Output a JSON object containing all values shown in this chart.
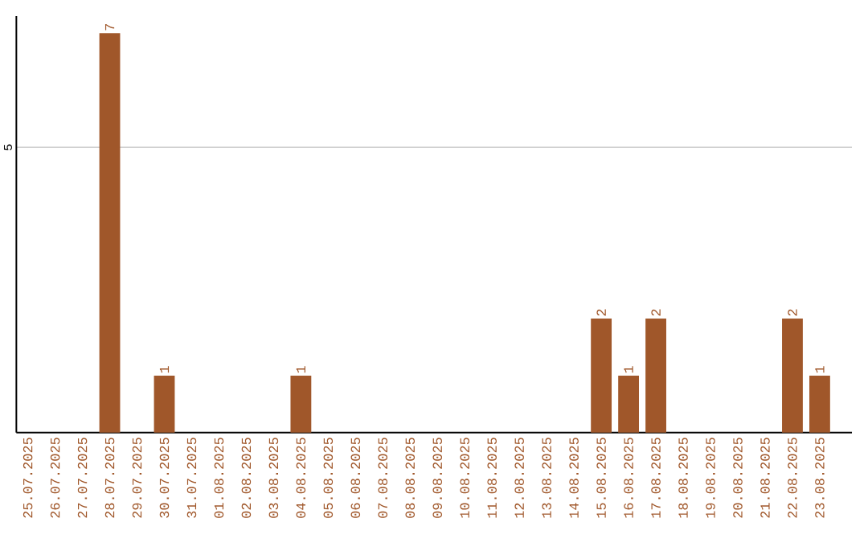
{
  "chart_data": {
    "type": "bar",
    "categories": [
      "25.07.2025",
      "26.07.2025",
      "27.07.2025",
      "28.07.2025",
      "29.07.2025",
      "30.07.2025",
      "31.07.2025",
      "01.08.2025",
      "02.08.2025",
      "03.08.2025",
      "04.08.2025",
      "05.08.2025",
      "06.08.2025",
      "07.08.2025",
      "08.08.2025",
      "09.08.2025",
      "10.08.2025",
      "11.08.2025",
      "12.08.2025",
      "13.08.2025",
      "14.08.2025",
      "15.08.2025",
      "16.08.2025",
      "17.08.2025",
      "18.08.2025",
      "19.08.2025",
      "20.08.2025",
      "21.08.2025",
      "22.08.2025",
      "23.08.2025"
    ],
    "values": [
      0,
      0,
      0,
      7,
      0,
      1,
      0,
      0,
      0,
      0,
      1,
      0,
      0,
      0,
      0,
      0,
      0,
      0,
      0,
      0,
      0,
      2,
      1,
      2,
      0,
      0,
      0,
      0,
      2,
      1
    ],
    "color": "#a0572a",
    "value_labels": [
      null,
      null,
      null,
      "7",
      null,
      "1",
      null,
      null,
      null,
      null,
      "1",
      null,
      null,
      null,
      null,
      null,
      null,
      null,
      null,
      null,
      null,
      "2",
      "1",
      "2",
      null,
      null,
      null,
      null,
      "2",
      "1"
    ],
    "ylim": [
      0,
      7.3
    ],
    "yticks": [
      5
    ],
    "grid": "y"
  }
}
